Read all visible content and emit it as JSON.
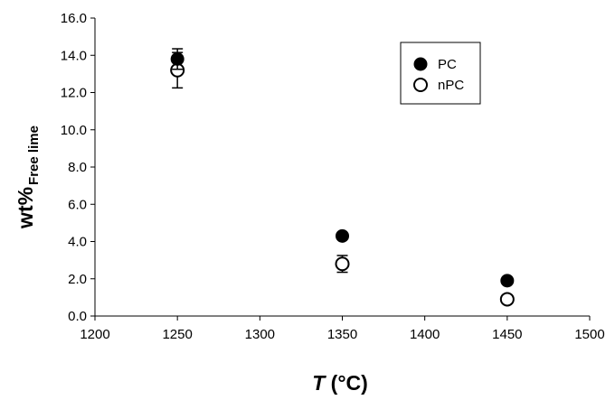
{
  "chart_data": {
    "type": "scatter",
    "xlabel": {
      "main": "T",
      "unit": " (°C)"
    },
    "ylabel": {
      "main": "wt%",
      "subscript": "Free lime"
    },
    "xlim": [
      1200,
      1500
    ],
    "ylim": [
      0,
      16
    ],
    "x_ticks": [
      "1200",
      "1250",
      "1300",
      "1350",
      "1400",
      "1450",
      "1500"
    ],
    "y_ticks": [
      "0.0",
      "2.0",
      "4.0",
      "6.0",
      "8.0",
      "10.0",
      "12.0",
      "14.0",
      "16.0"
    ],
    "grid": false,
    "legend_position": "top-right",
    "series": [
      {
        "name": "PC",
        "marker": "filled-circle",
        "color": "#000000",
        "points": [
          {
            "x": 1250,
            "y": 13.8,
            "err": 0.55
          },
          {
            "x": 1350,
            "y": 4.3,
            "err": 0
          },
          {
            "x": 1450,
            "y": 1.9,
            "err": 0
          }
        ]
      },
      {
        "name": "nPC",
        "marker": "open-circle",
        "color": "#000000",
        "points": [
          {
            "x": 1250,
            "y": 13.2,
            "err": 0.95
          },
          {
            "x": 1350,
            "y": 2.8,
            "err": 0.45
          },
          {
            "x": 1450,
            "y": 0.9,
            "err": 0
          }
        ]
      }
    ]
  }
}
